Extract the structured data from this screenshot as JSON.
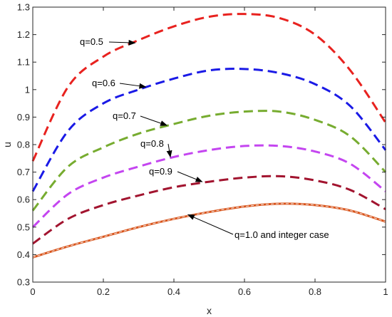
{
  "chart_data": {
    "type": "line",
    "title": "",
    "xlabel": "x",
    "ylabel": "u",
    "xlim": [
      0,
      1
    ],
    "ylim": [
      0.3,
      1.3
    ],
    "xticks": [
      0,
      0.2,
      0.4,
      0.6,
      0.8,
      1
    ],
    "xtick_labels": [
      "0",
      "0.2",
      "0.4",
      "0.6",
      "0.8",
      "1"
    ],
    "yticks": [
      0.3,
      0.4,
      0.5,
      0.6,
      0.7,
      0.8,
      0.9,
      1,
      1.1,
      1.2,
      1.3
    ],
    "ytick_labels": [
      "0.3",
      "0.4",
      "0.5",
      "0.6",
      "0.7",
      "0.8",
      "0.9",
      "1",
      "1.1",
      "1.2",
      "1.3"
    ],
    "grid": false,
    "series": [
      {
        "label": "q=0.5",
        "color": "#e8221f",
        "style": "dashed",
        "x": [
          0,
          0.1,
          0.2,
          0.3,
          0.4,
          0.5,
          0.6,
          0.7,
          0.8,
          0.9,
          1
        ],
        "y": [
          0.74,
          1.01,
          1.12,
          1.18,
          1.23,
          1.265,
          1.275,
          1.26,
          1.2,
          1.07,
          0.88
        ]
      },
      {
        "label": "q=0.6",
        "color": "#1a1ae6",
        "style": "dashed",
        "x": [
          0,
          0.1,
          0.2,
          0.3,
          0.4,
          0.5,
          0.6,
          0.7,
          0.8,
          0.9,
          1
        ],
        "y": [
          0.63,
          0.85,
          0.95,
          1.0,
          1.04,
          1.07,
          1.075,
          1.06,
          1.02,
          0.94,
          0.78
        ]
      },
      {
        "label": "q=0.7",
        "color": "#77ac30",
        "style": "dashed",
        "x": [
          0,
          0.1,
          0.2,
          0.3,
          0.4,
          0.5,
          0.6,
          0.7,
          0.8,
          0.9,
          1
        ],
        "y": [
          0.56,
          0.72,
          0.79,
          0.84,
          0.875,
          0.905,
          0.92,
          0.92,
          0.89,
          0.83,
          0.7
        ]
      },
      {
        "label": "q=0.8",
        "color": "#c445f0",
        "style": "dashed",
        "x": [
          0,
          0.1,
          0.2,
          0.3,
          0.4,
          0.5,
          0.6,
          0.7,
          0.8,
          0.9,
          1
        ],
        "y": [
          0.5,
          0.62,
          0.68,
          0.72,
          0.755,
          0.78,
          0.795,
          0.795,
          0.775,
          0.73,
          0.63
        ]
      },
      {
        "label": "q=0.9",
        "color": "#a2142f",
        "style": "dashed",
        "x": [
          0,
          0.1,
          0.2,
          0.3,
          0.4,
          0.5,
          0.6,
          0.7,
          0.8,
          0.9,
          1
        ],
        "y": [
          0.44,
          0.53,
          0.58,
          0.615,
          0.645,
          0.665,
          0.68,
          0.685,
          0.67,
          0.635,
          0.565
        ]
      },
      {
        "label": "q=1.0 and integer case",
        "color": "#d95319",
        "style": "solid",
        "x": [
          0,
          0.1,
          0.2,
          0.3,
          0.4,
          0.5,
          0.6,
          0.7,
          0.8,
          0.9,
          1
        ],
        "y": [
          0.39,
          0.43,
          0.465,
          0.5,
          0.53,
          0.555,
          0.575,
          0.585,
          0.58,
          0.56,
          0.52
        ]
      }
    ],
    "annotations": [
      {
        "text": "q=0.5",
        "arrow_to": [
          0.29,
          1.17
        ]
      },
      {
        "text": "q=0.6",
        "arrow_to": [
          0.32,
          1.01
        ]
      },
      {
        "text": "q=0.7",
        "arrow_to": [
          0.38,
          0.87
        ]
      },
      {
        "text": "q=0.8",
        "arrow_to": [
          0.39,
          0.755
        ]
      },
      {
        "text": "q=0.9",
        "arrow_to": [
          0.48,
          0.665
        ]
      },
      {
        "text": "q=1.0 and integer case",
        "arrow_to": [
          0.44,
          0.545
        ]
      }
    ]
  }
}
